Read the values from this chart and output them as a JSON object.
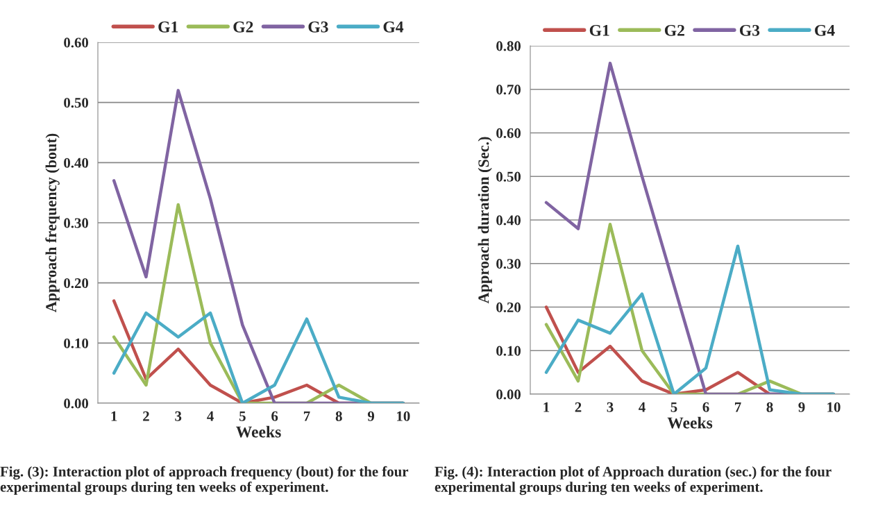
{
  "chart_data": [
    {
      "type": "line",
      "xlabel": "Weeks",
      "ylabel": "Approach frequency (bout)",
      "categories": [
        "1",
        "2",
        "3",
        "4",
        "5",
        "6",
        "7",
        "8",
        "9",
        "10"
      ],
      "series": [
        {
          "name": "G1",
          "color": "#c0504d",
          "values": [
            0.17,
            0.04,
            0.09,
            0.03,
            0.0,
            0.01,
            0.03,
            0.0,
            0.0,
            0.0
          ]
        },
        {
          "name": "G2",
          "color": "#9bbb59",
          "values": [
            0.11,
            0.03,
            0.33,
            0.1,
            0.0,
            0.0,
            0.0,
            0.03,
            0.0,
            0.0
          ]
        },
        {
          "name": "G3",
          "color": "#8064a2",
          "values": [
            0.37,
            0.21,
            0.52,
            0.34,
            0.13,
            0.0,
            0.0,
            0.0,
            0.0,
            0.0
          ]
        },
        {
          "name": "G4",
          "color": "#4bacc6",
          "values": [
            0.05,
            0.15,
            0.11,
            0.15,
            0.0,
            0.03,
            0.14,
            0.01,
            0.0,
            0.0
          ]
        }
      ],
      "ylim": [
        0,
        0.6
      ],
      "yticks": [
        {
          "value": 0,
          "label": "0.00"
        },
        {
          "value": 0.1,
          "label": "0.10"
        },
        {
          "value": 0.2,
          "label": "0.20"
        },
        {
          "value": 0.3,
          "label": "0.30"
        },
        {
          "value": 0.4,
          "label": "0.40"
        },
        {
          "value": 0.5,
          "label": "0.50"
        },
        {
          "value": 0.6,
          "label": "0.60"
        }
      ],
      "grid": "y",
      "legend": "top",
      "marker": "none",
      "line_style": "solid",
      "annotations": [
        "Fig. (3): Interaction plot of approach frequency (bout) for the four experimental groups during ten weeks of experiment."
      ]
    },
    {
      "type": "line",
      "xlabel": "Weeks",
      "ylabel": "Approach duration (Sec.)",
      "categories": [
        "1",
        "2",
        "3",
        "4",
        "5",
        "6",
        "7",
        "8",
        "9",
        "10"
      ],
      "series": [
        {
          "name": "G1",
          "color": "#c0504d",
          "values": [
            0.2,
            0.05,
            0.11,
            0.03,
            0.0,
            0.01,
            0.05,
            0.0,
            0.0,
            0.0
          ]
        },
        {
          "name": "G2",
          "color": "#9bbb59",
          "values": [
            0.16,
            0.03,
            0.39,
            0.1,
            0.0,
            0.0,
            0.0,
            0.03,
            0.0,
            0.0
          ]
        },
        {
          "name": "G3",
          "color": "#8064a2",
          "values": [
            0.44,
            0.38,
            0.76,
            0.5,
            0.25,
            0.0,
            0.0,
            0.0,
            0.0,
            0.0
          ]
        },
        {
          "name": "G4",
          "color": "#4bacc6",
          "values": [
            0.05,
            0.17,
            0.14,
            0.23,
            0.0,
            0.06,
            0.34,
            0.01,
            0.0,
            0.0
          ]
        }
      ],
      "ylim": [
        0,
        0.8
      ],
      "yticks": [
        {
          "value": 0,
          "label": "0.00"
        },
        {
          "value": 0.1,
          "label": "0.10"
        },
        {
          "value": 0.2,
          "label": "0.20"
        },
        {
          "value": 0.3,
          "label": "0.30"
        },
        {
          "value": 0.4,
          "label": "0.40"
        },
        {
          "value": 0.5,
          "label": "0.50"
        },
        {
          "value": 0.6,
          "label": "0.60"
        },
        {
          "value": 0.7,
          "label": "0.70"
        },
        {
          "value": 0.8,
          "label": "0.80"
        }
      ],
      "grid": "y",
      "legend": "top",
      "marker": "none",
      "line_style": "solid",
      "annotations": [
        "Fig. (4): Interaction plot of Approach duration (sec.) for the four experimental groups during ten weeks of experiment."
      ]
    }
  ]
}
